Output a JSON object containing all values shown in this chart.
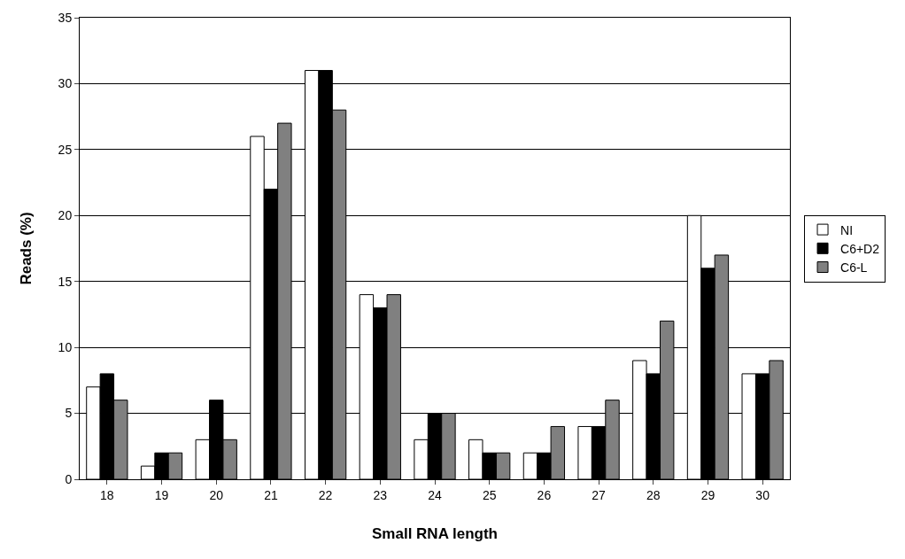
{
  "chart_data": {
    "type": "bar",
    "xlabel": "Small RNA length",
    "ylabel": "Reads (%)",
    "categories": [
      "18",
      "19",
      "20",
      "21",
      "22",
      "23",
      "24",
      "25",
      "26",
      "27",
      "28",
      "29",
      "30"
    ],
    "series": [
      {
        "name": "NI",
        "color": "#ffffff",
        "values": [
          7,
          1,
          3,
          26,
          31,
          14,
          3,
          3,
          2,
          4,
          9,
          20,
          8
        ]
      },
      {
        "name": "C6+D2",
        "color": "#000000",
        "values": [
          8,
          2,
          6,
          22,
          31,
          13,
          5,
          2,
          2,
          4,
          8,
          16,
          8
        ]
      },
      {
        "name": "C6-L",
        "color": "#808080",
        "values": [
          6,
          2,
          3,
          27,
          28,
          14,
          5,
          2,
          4,
          6,
          12,
          17,
          9
        ]
      }
    ],
    "ylim": [
      0,
      35
    ],
    "yticks": [
      0,
      5,
      10,
      15,
      20,
      25,
      30,
      35
    ],
    "grid": "y",
    "legend": "right"
  }
}
